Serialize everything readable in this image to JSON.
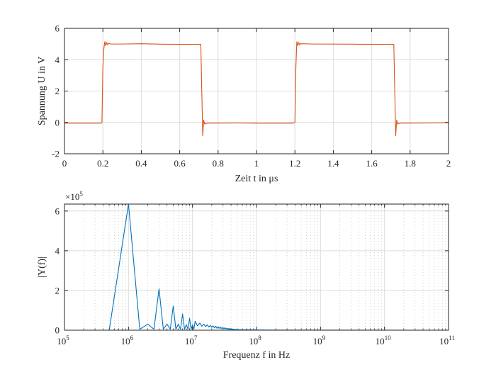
{
  "chart_data": [
    {
      "type": "line",
      "title": "",
      "xlabel": "Zeit t in μs",
      "ylabel": "Spannung U in V",
      "xlim": [
        0,
        2
      ],
      "ylim": [
        -2,
        6
      ],
      "xscale": "linear",
      "grid": true,
      "color": "#D95319",
      "xticks": [
        0,
        0.2,
        0.4,
        0.6,
        0.8,
        1,
        1.2,
        1.4,
        1.6,
        1.8,
        2
      ],
      "xticklabels": [
        "0",
        "0.2",
        "0.4",
        "0.6",
        "0.8",
        "1",
        "1.2",
        "1.4",
        "1.6",
        "1.8",
        "2"
      ],
      "yticks": [
        -2,
        0,
        2,
        4,
        6
      ],
      "yticklabels": [
        "-2",
        "0",
        "2",
        "4",
        "6"
      ],
      "x": [
        0,
        0.19,
        0.195,
        0.2,
        0.205,
        0.21,
        0.215,
        0.22,
        0.225,
        0.23,
        0.24,
        0.3,
        0.4,
        0.5,
        0.6,
        0.71,
        0.715,
        0.72,
        0.725,
        0.73,
        0.74,
        0.9,
        1.0,
        1.19,
        1.2,
        1.205,
        1.21,
        1.215,
        1.22,
        1.225,
        1.23,
        1.3,
        1.5,
        1.715,
        1.72,
        1.725,
        1.73,
        1.735,
        1.745,
        1.9,
        2
      ],
      "y": [
        -0.05,
        -0.05,
        0,
        3.5,
        4.7,
        5.15,
        4.9,
        5.1,
        4.95,
        5.05,
        5.0,
        5.0,
        5.02,
        4.99,
        4.98,
        4.98,
        2.0,
        -0.85,
        0.15,
        -0.1,
        -0.05,
        -0.04,
        -0.05,
        -0.05,
        0,
        3.5,
        5.15,
        4.9,
        5.1,
        4.95,
        5.02,
        5.0,
        4.99,
        4.98,
        2.0,
        -0.85,
        0.15,
        -0.1,
        -0.05,
        -0.04,
        -0.03
      ]
    },
    {
      "type": "line",
      "title": "",
      "xlabel": "Frequenz f in Hz",
      "ylabel": "|Y(f)|",
      "xlim": [
        100000.0,
        100000000000.0
      ],
      "ylim": [
        0,
        6.35
      ],
      "xscale": "log",
      "grid": true,
      "minor_grid": true,
      "color": "#0072BD",
      "y_multiplier": {
        "prefix": "×10",
        "exp": "5"
      },
      "xticks": [
        100000.0,
        1000000.0,
        10000000.0,
        100000000.0,
        1000000000.0,
        10000000000.0,
        100000000000.0
      ],
      "xticklabels": [
        {
          "base": "10",
          "exp": "5"
        },
        {
          "base": "10",
          "exp": "6"
        },
        {
          "base": "10",
          "exp": "7"
        },
        {
          "base": "10",
          "exp": "8"
        },
        {
          "base": "10",
          "exp": "9"
        },
        {
          "base": "10",
          "exp": "10"
        },
        {
          "base": "10",
          "exp": "11"
        }
      ],
      "yticks": [
        0,
        2,
        4,
        6
      ],
      "yticklabels": [
        "0",
        "2",
        "4",
        "6"
      ],
      "x": [
        500000.0,
        1000000.0,
        1500000.0,
        2000000.0,
        2500000.0,
        3000000.0,
        3500000.0,
        4000000.0,
        4500000.0,
        5000000.0,
        5500000.0,
        6000000.0,
        6500000.0,
        7000000.0,
        7500000.0,
        8000000.0,
        8500000.0,
        9000000.0,
        9500000.0,
        10000000.0,
        10500000.0,
        11000000.0,
        12000000.0,
        13000000.0,
        14000000.0,
        15000000.0,
        16000000.0,
        17000000.0,
        18000000.0,
        19000000.0,
        20000000.0,
        21000000.0,
        22000000.0,
        23000000.0,
        24000000.0,
        25000000.0,
        26000000.0,
        27000000.0,
        28000000.0,
        29000000.0,
        30000000.0,
        31000000.0,
        32000000.0,
        33000000.0,
        34000000.0,
        35000000.0,
        36000000.0,
        37000000.0,
        38000000.0,
        39000000.0,
        40000000.0,
        41000000.0,
        42000000.0,
        43000000.0,
        44000000.0,
        45000000.0,
        46000000.0,
        47000000.0,
        48000000.0,
        49000000.0,
        60000000.0,
        100000000.0,
        50000000000.0
      ],
      "y": [
        0,
        6.35,
        0.05,
        0.3,
        0.05,
        2.08,
        0.05,
        0.3,
        0.05,
        1.22,
        0.05,
        0.3,
        0.05,
        0.82,
        0.05,
        0.28,
        0.05,
        0.6,
        0.05,
        0.27,
        0.05,
        0.45,
        0.22,
        0.36,
        0.2,
        0.3,
        0.18,
        0.27,
        0.16,
        0.24,
        0.14,
        0.22,
        0.12,
        0.2,
        0.1,
        0.18,
        0.09,
        0.16,
        0.08,
        0.14,
        0.07,
        0.12,
        0.06,
        0.11,
        0.05,
        0.1,
        0.04,
        0.09,
        0.03,
        0.08,
        0.03,
        0.07,
        0.02,
        0.06,
        0.02,
        0.05,
        0.01,
        0.04,
        0.01,
        0.03,
        0.02,
        0.01,
        0
      ]
    }
  ]
}
